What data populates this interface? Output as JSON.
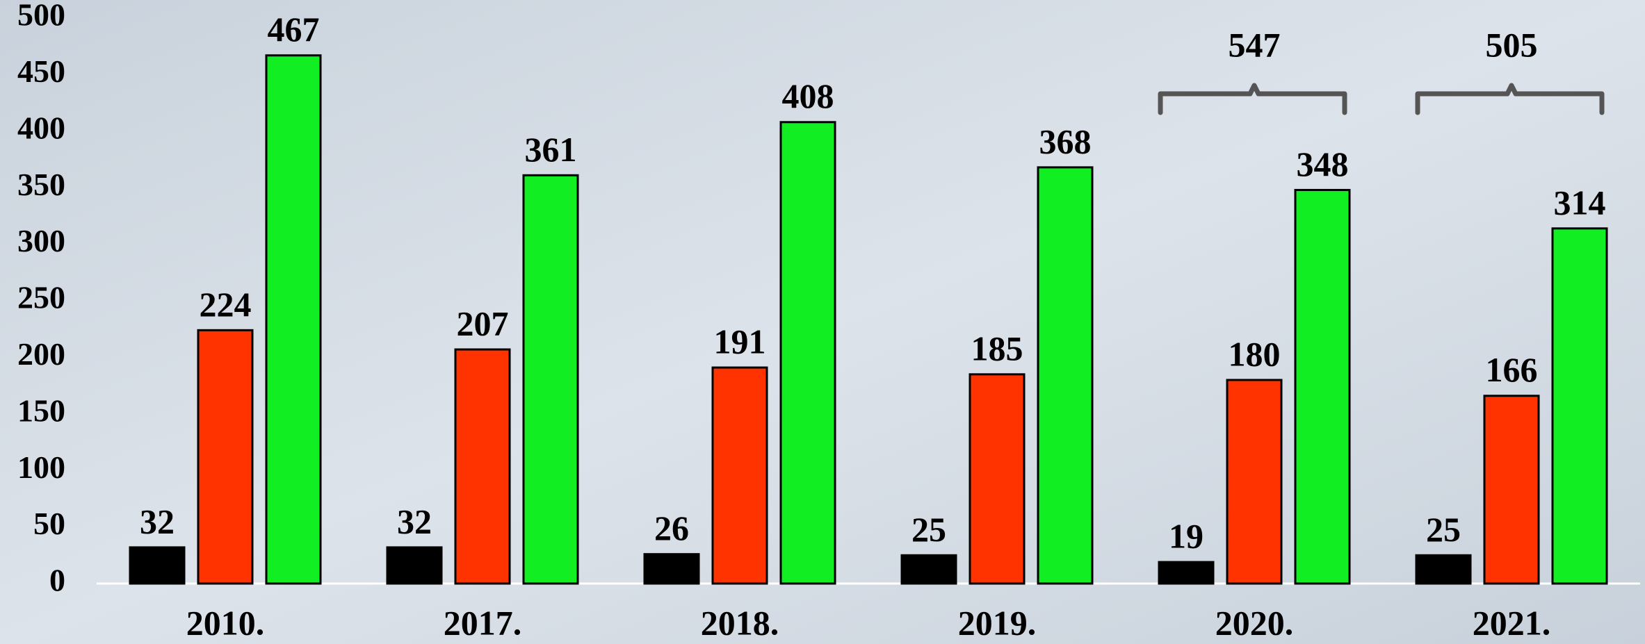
{
  "chart_data": {
    "type": "bar",
    "categories": [
      "2010.",
      "2017.",
      "2018.",
      "2019.",
      "2020.",
      "2021."
    ],
    "series": [
      {
        "color": "#000000",
        "values": [
          32,
          32,
          26,
          25,
          19,
          25
        ]
      },
      {
        "color": "#ff3300",
        "values": [
          224,
          207,
          191,
          185,
          180,
          166
        ]
      },
      {
        "color": "#11ee22",
        "values": [
          467,
          361,
          408,
          368,
          348,
          314
        ]
      }
    ],
    "ylim": [
      0,
      500
    ],
    "yticks": [
      0,
      50,
      100,
      150,
      200,
      250,
      300,
      350,
      400,
      450,
      500
    ],
    "grid": false,
    "annotations": [
      {
        "category": "2020.",
        "value": 547
      },
      {
        "category": "2021.",
        "value": 505
      }
    ]
  }
}
